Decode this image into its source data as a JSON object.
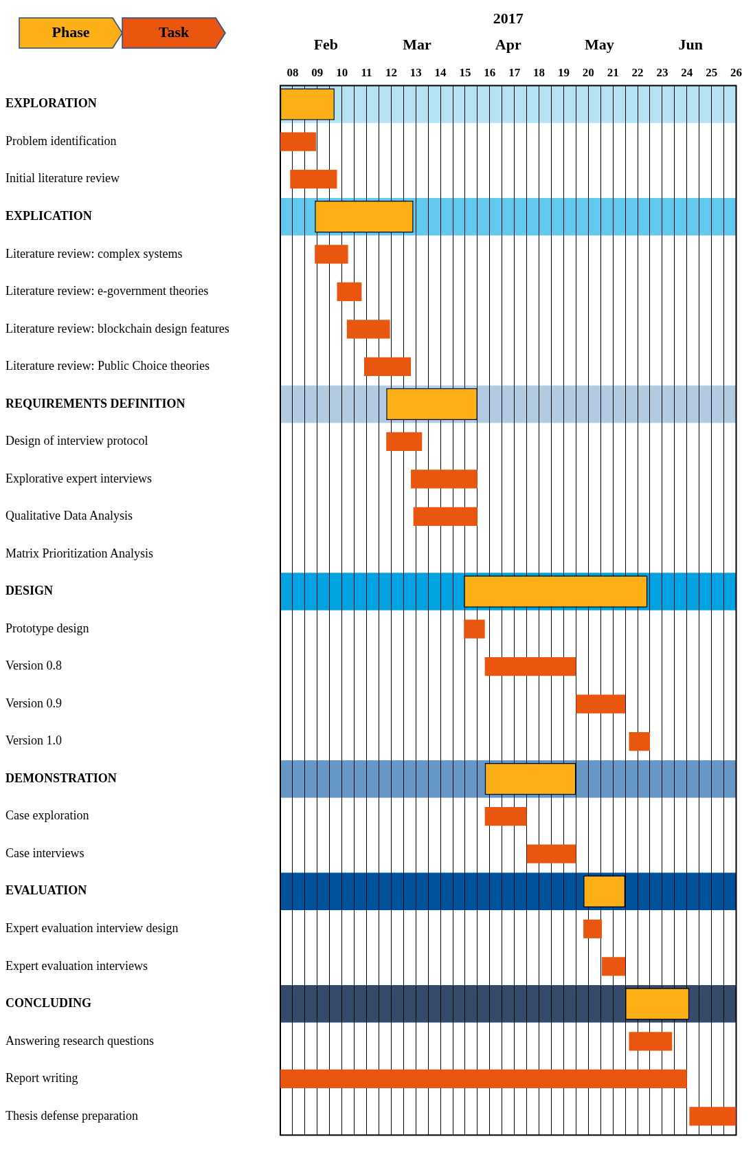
{
  "chart_data": {
    "type": "bar",
    "orientation": "horizontal",
    "title": "2017",
    "annotations": [
      "Feb",
      "Mar",
      "Apr",
      "May",
      "Jun"
    ],
    "categories": [
      "EXPLORATION",
      "Problem identification",
      "Initial literature review",
      "EXPLICATION",
      "Literature review: complex systems",
      "Literature review: e-government theories",
      "Literature review: blockchain design features",
      "Literature review: Public Choice theories",
      "REQUIREMENTS DEFINITION",
      "Design of interview protocol",
      "Explorative expert interviews",
      "Qualitative Data Analysis",
      "Matrix Prioritization Analysis",
      "DESIGN",
      "Prototype design",
      "Version 0.8",
      "Version 0.9",
      "Version 1.0",
      "DEMONSTRATION",
      "Case exploration",
      "Case interviews",
      "EVALUATION",
      "Expert evaluation interview design",
      "Expert evaluation interviews",
      "CONCLUDING",
      "Answering research questions",
      "Report writing",
      "Thesis defense preparation"
    ],
    "series": [
      {
        "name": "Phase",
        "color": "#fcaf17",
        "base": [
          8,
          null,
          null,
          9.4,
          null,
          null,
          null,
          null,
          12.3,
          null,
          null,
          null,
          null,
          15.45,
          null,
          null,
          null,
          null,
          16.3,
          null,
          null,
          20.3,
          null,
          null,
          22,
          null,
          null,
          null
        ],
        "values": [
          2.2,
          null,
          null,
          4,
          null,
          null,
          null,
          null,
          3.7,
          null,
          null,
          null,
          null,
          7.45,
          null,
          null,
          null,
          null,
          3.7,
          null,
          null,
          1.7,
          null,
          null,
          2.6,
          null,
          null,
          null
        ]
      },
      {
        "name": "Task",
        "color": "#e8560f",
        "base": [
          null,
          8,
          8.4,
          null,
          9.4,
          10.3,
          10.7,
          11.4,
          null,
          12.3,
          13.3,
          13.4,
          null,
          null,
          15.45,
          16.3,
          20,
          22.15,
          null,
          16.3,
          18,
          null,
          20.3,
          21.05,
          null,
          22.15,
          8,
          24.6
        ],
        "values": [
          null,
          1.45,
          1.9,
          null,
          1.35,
          1,
          1.75,
          1.9,
          null,
          1.45,
          2.7,
          2.6,
          null,
          null,
          0.85,
          3.7,
          2,
          0.85,
          null,
          1.7,
          2,
          null,
          0.75,
          0.95,
          null,
          1.75,
          16.5,
          1.9
        ]
      }
    ],
    "bands": [
      {
        "axis": "y",
        "from": "EXPLORATION",
        "to": "EXPLORATION",
        "color": "#b3e3f5"
      },
      {
        "axis": "y",
        "from": "EXPLICATION",
        "to": "EXPLICATION",
        "color": "#62c8ee"
      },
      {
        "axis": "y",
        "from": "REQUIREMENTS DEFINITION",
        "to": "REQUIREMENTS DEFINITION",
        "color": "#b1cbe2"
      },
      {
        "axis": "y",
        "from": "DESIGN",
        "to": "DESIGN",
        "color": "#00a3e2"
      },
      {
        "axis": "y",
        "from": "DEMONSTRATION",
        "to": "DEMONSTRATION",
        "color": "#6597c6"
      },
      {
        "axis": "y",
        "from": "EVALUATION",
        "to": "EVALUATION",
        "color": "#00529c"
      },
      {
        "axis": "y",
        "from": "CONCLUDING",
        "to": "CONCLUDING",
        "color": "#344b6b"
      }
    ],
    "xlim": [
      8,
      26.5
    ],
    "xticks": [
      {
        "value": 8,
        "label": null
      },
      {
        "value": 8.5,
        "label": "08"
      },
      {
        "value": 9,
        "label": null
      },
      {
        "value": 9.5,
        "label": "09"
      },
      {
        "value": 10,
        "label": null
      },
      {
        "value": 10.5,
        "label": "10"
      },
      {
        "value": 11,
        "label": null
      },
      {
        "value": 11.5,
        "label": "11"
      },
      {
        "value": 12,
        "label": null
      },
      {
        "value": 12.5,
        "label": "12"
      },
      {
        "value": 13,
        "label": null
      },
      {
        "value": 13.5,
        "label": "13"
      },
      {
        "value": 14,
        "label": null
      },
      {
        "value": 14.5,
        "label": "14"
      },
      {
        "value": 15,
        "label": null
      },
      {
        "value": 15.5,
        "label": "15"
      },
      {
        "value": 16,
        "label": null
      },
      {
        "value": 16.5,
        "label": "16"
      },
      {
        "value": 17,
        "label": null
      },
      {
        "value": 17.5,
        "label": "17"
      },
      {
        "value": 18,
        "label": null
      },
      {
        "value": 18.5,
        "label": "18"
      },
      {
        "value": 19,
        "label": null
      },
      {
        "value": 19.5,
        "label": "19"
      },
      {
        "value": 20,
        "label": null
      },
      {
        "value": 20.5,
        "label": "20"
      },
      {
        "value": 21,
        "label": null
      },
      {
        "value": 21.5,
        "label": "21"
      },
      {
        "value": 22,
        "label": null
      },
      {
        "value": 22.5,
        "label": "22"
      },
      {
        "value": 23,
        "label": null
      },
      {
        "value": 23.5,
        "label": "23"
      },
      {
        "value": 24,
        "label": null
      },
      {
        "value": 24.5,
        "label": "24"
      },
      {
        "value": 25,
        "label": null
      },
      {
        "value": 25.5,
        "label": "25"
      },
      {
        "value": 26,
        "label": null
      },
      {
        "value": 26.5,
        "label": "26"
      }
    ],
    "grid": "x",
    "legend": "top left"
  }
}
